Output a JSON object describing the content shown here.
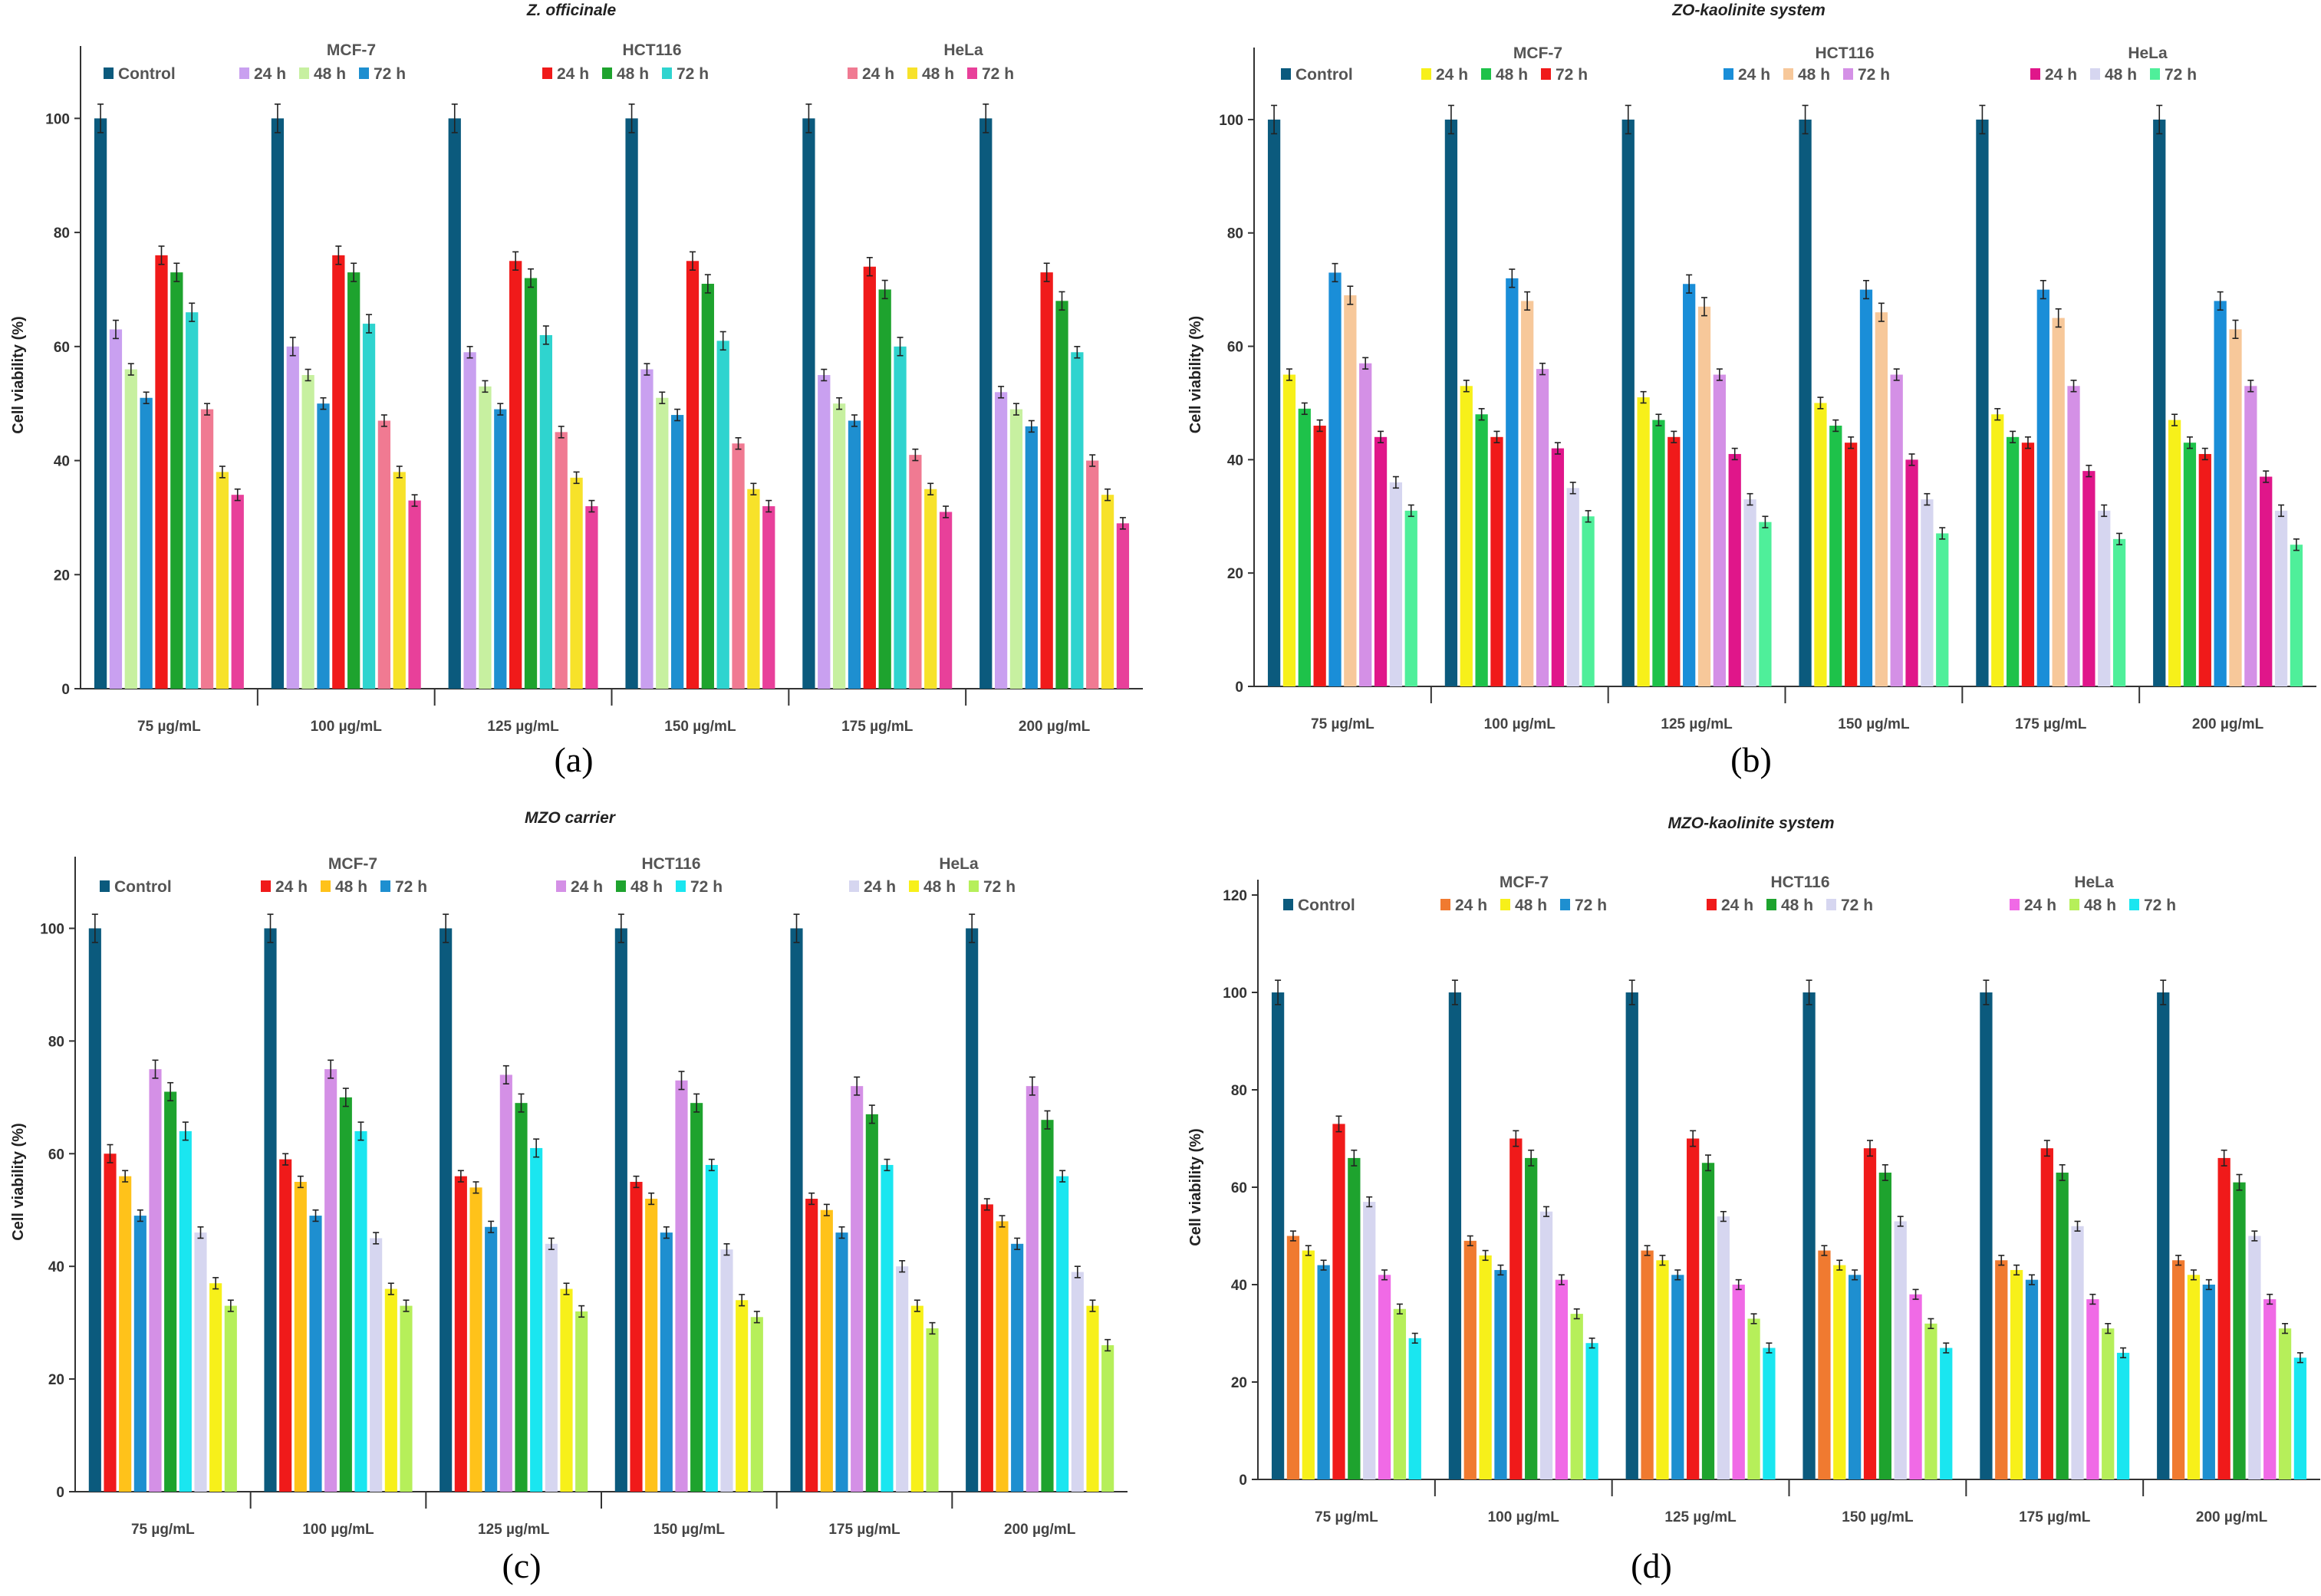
{
  "chart_data": [
    {
      "type": "bar",
      "panel_label": "(a)",
      "title": "Z. officinale",
      "ylabel": "Cell viability (%)",
      "ylim": [
        0,
        110
      ],
      "yticks": [
        0,
        20,
        40,
        60,
        80,
        100
      ],
      "categories": [
        "75 µg/mL",
        "100 µg/mL",
        "125 µg/mL",
        "150 µg/mL",
        "175 µg/mL",
        "200 µg/mL"
      ],
      "cell_lines": [
        "MCF-7",
        "HCT116",
        "HeLa"
      ],
      "control_label": "Control",
      "series": [
        {
          "name": "Control",
          "group": "",
          "color": "#0b5a7d",
          "values": [
            100,
            100,
            100,
            100,
            100,
            100
          ]
        },
        {
          "name": "24 h",
          "group": "MCF-7",
          "color": "#c9a0f0",
          "values": [
            63,
            60,
            59,
            56,
            55,
            52
          ]
        },
        {
          "name": "48 h",
          "group": "MCF-7",
          "color": "#c7f0a0",
          "values": [
            56,
            55,
            53,
            51,
            50,
            49
          ]
        },
        {
          "name": "72 h",
          "group": "MCF-7",
          "color": "#1e8fd0",
          "values": [
            51,
            50,
            49,
            48,
            47,
            46
          ]
        },
        {
          "name": "24 h",
          "group": "HCT116",
          "color": "#f01a1a",
          "values": [
            76,
            76,
            75,
            75,
            74,
            73
          ]
        },
        {
          "name": "48 h",
          "group": "HCT116",
          "color": "#1ea32e",
          "values": [
            73,
            73,
            72,
            71,
            70,
            68
          ]
        },
        {
          "name": "72 h",
          "group": "HCT116",
          "color": "#2fd4cf",
          "values": [
            66,
            64,
            62,
            61,
            60,
            59
          ]
        },
        {
          "name": "24 h",
          "group": "HeLa",
          "color": "#f07a92",
          "values": [
            49,
            47,
            45,
            43,
            41,
            40
          ]
        },
        {
          "name": "48 h",
          "group": "HeLa",
          "color": "#f7e22a",
          "values": [
            38,
            38,
            37,
            35,
            35,
            34
          ]
        },
        {
          "name": "72 h",
          "group": "HeLa",
          "color": "#e8409a",
          "values": [
            34,
            33,
            32,
            32,
            31,
            29
          ]
        }
      ]
    },
    {
      "type": "bar",
      "panel_label": "(b)",
      "title": "ZO-kaolinite system",
      "ylabel": "Cell viability (%)",
      "ylim": [
        0,
        110
      ],
      "yticks": [
        0,
        20,
        40,
        60,
        80,
        100
      ],
      "categories": [
        "75 µg/mL",
        "100 µg/mL",
        "125 µg/mL",
        "150 µg/mL",
        "175 µg/mL",
        "200 µg/mL"
      ],
      "cell_lines": [
        "MCF-7",
        "HCT116",
        "HeLa"
      ],
      "control_label": "Control",
      "series": [
        {
          "name": "Control",
          "group": "",
          "color": "#0b5a7d",
          "values": [
            100,
            100,
            100,
            100,
            100,
            100
          ]
        },
        {
          "name": "24 h",
          "group": "MCF-7",
          "color": "#f7f01a",
          "values": [
            55,
            53,
            51,
            50,
            48,
            47
          ]
        },
        {
          "name": "48 h",
          "group": "MCF-7",
          "color": "#1ec24a",
          "values": [
            49,
            48,
            47,
            46,
            44,
            43
          ]
        },
        {
          "name": "72 h",
          "group": "MCF-7",
          "color": "#f01a1a",
          "values": [
            46,
            44,
            44,
            43,
            43,
            41
          ]
        },
        {
          "name": "24 h",
          "group": "HCT116",
          "color": "#1a8ed8",
          "values": [
            73,
            72,
            71,
            70,
            70,
            68
          ]
        },
        {
          "name": "48 h",
          "group": "HCT116",
          "color": "#f7c89a",
          "values": [
            69,
            68,
            67,
            66,
            65,
            63
          ]
        },
        {
          "name": "72 h",
          "group": "HCT116",
          "color": "#d490e6",
          "values": [
            57,
            56,
            55,
            55,
            53,
            53
          ]
        },
        {
          "name": "24 h",
          "group": "HeLa",
          "color": "#e0168a",
          "values": [
            44,
            42,
            41,
            40,
            38,
            37
          ]
        },
        {
          "name": "48 h",
          "group": "HeLa",
          "color": "#d6d6f0",
          "values": [
            36,
            35,
            33,
            33,
            31,
            31
          ]
        },
        {
          "name": "72 h",
          "group": "HeLa",
          "color": "#4fef9a",
          "values": [
            31,
            30,
            29,
            27,
            26,
            25
          ]
        }
      ]
    },
    {
      "type": "bar",
      "panel_label": "(c)",
      "title": "MZO carrier",
      "ylabel": "Cell viability (%)",
      "ylim": [
        0,
        110
      ],
      "yticks": [
        0,
        20,
        40,
        60,
        80,
        100
      ],
      "categories": [
        "75 µg/mL",
        "100 µg/mL",
        "125 µg/mL",
        "150 µg/mL",
        "175 µg/mL",
        "200 µg/mL"
      ],
      "cell_lines": [
        "MCF-7",
        "HCT116",
        "HeLa"
      ],
      "control_label": "Control",
      "series": [
        {
          "name": "Control",
          "group": "",
          "color": "#0b5a7d",
          "values": [
            100,
            100,
            100,
            100,
            100,
            100
          ]
        },
        {
          "name": "24 h",
          "group": "MCF-7",
          "color": "#f01a1a",
          "values": [
            60,
            59,
            56,
            55,
            52,
            51
          ]
        },
        {
          "name": "48 h",
          "group": "MCF-7",
          "color": "#ffc21a",
          "values": [
            56,
            55,
            54,
            52,
            50,
            48
          ]
        },
        {
          "name": "72 h",
          "group": "MCF-7",
          "color": "#1e8fd0",
          "values": [
            49,
            49,
            47,
            46,
            46,
            44
          ]
        },
        {
          "name": "24 h",
          "group": "HCT116",
          "color": "#d490e6",
          "values": [
            75,
            75,
            74,
            73,
            72,
            72
          ]
        },
        {
          "name": "48 h",
          "group": "HCT116",
          "color": "#1ea32e",
          "values": [
            71,
            70,
            69,
            69,
            67,
            66
          ]
        },
        {
          "name": "72 h",
          "group": "HCT116",
          "color": "#1ae6f0",
          "values": [
            64,
            64,
            61,
            58,
            58,
            56
          ]
        },
        {
          "name": "24 h",
          "group": "HeLa",
          "color": "#d6d6f0",
          "values": [
            46,
            45,
            44,
            43,
            40,
            39
          ]
        },
        {
          "name": "48 h",
          "group": "HeLa",
          "color": "#f7f01a",
          "values": [
            37,
            36,
            36,
            34,
            33,
            33
          ]
        },
        {
          "name": "72 h",
          "group": "HeLa",
          "color": "#b6ef5a",
          "values": [
            33,
            33,
            32,
            31,
            29,
            26
          ]
        }
      ]
    },
    {
      "type": "bar",
      "panel_label": "(d)",
      "title": "MZO-kaolinite system",
      "ylabel": "Cell viability (%)",
      "ylim": [
        0,
        120
      ],
      "yticks": [
        0,
        20,
        40,
        60,
        80,
        100,
        120
      ],
      "categories": [
        "75 µg/mL",
        "100 µg/mL",
        "125 µg/mL",
        "150 µg/mL",
        "175 µg/mL",
        "200 µg/mL"
      ],
      "cell_lines": [
        "MCF-7",
        "HCT116",
        "HeLa"
      ],
      "control_label": "Control",
      "series": [
        {
          "name": "Control",
          "group": "",
          "color": "#0b5a7d",
          "values": [
            100,
            100,
            100,
            100,
            100,
            100
          ]
        },
        {
          "name": "24 h",
          "group": "MCF-7",
          "color": "#f07a30",
          "values": [
            50,
            49,
            47,
            47,
            45,
            45
          ]
        },
        {
          "name": "48 h",
          "group": "MCF-7",
          "color": "#f7f01a",
          "values": [
            47,
            46,
            45,
            44,
            43,
            42
          ]
        },
        {
          "name": "72 h",
          "group": "MCF-7",
          "color": "#1e8fd0",
          "values": [
            44,
            43,
            42,
            42,
            41,
            40
          ]
        },
        {
          "name": "24 h",
          "group": "HCT116",
          "color": "#f01a1a",
          "values": [
            73,
            70,
            70,
            68,
            68,
            66
          ]
        },
        {
          "name": "48 h",
          "group": "HCT116",
          "color": "#1ea32e",
          "values": [
            66,
            66,
            65,
            63,
            63,
            61
          ]
        },
        {
          "name": "72 h",
          "group": "HCT116",
          "color": "#d6d6f0",
          "values": [
            57,
            55,
            54,
            53,
            52,
            50
          ]
        },
        {
          "name": "24 h",
          "group": "HeLa",
          "color": "#f06ae6",
          "values": [
            42,
            41,
            40,
            38,
            37,
            37
          ]
        },
        {
          "name": "48 h",
          "group": "HeLa",
          "color": "#b6ef5a",
          "values": [
            35,
            34,
            33,
            32,
            31,
            31
          ]
        },
        {
          "name": "72 h",
          "group": "HeLa",
          "color": "#1ae6f0",
          "values": [
            29,
            28,
            27,
            27,
            26,
            25
          ]
        }
      ]
    }
  ]
}
